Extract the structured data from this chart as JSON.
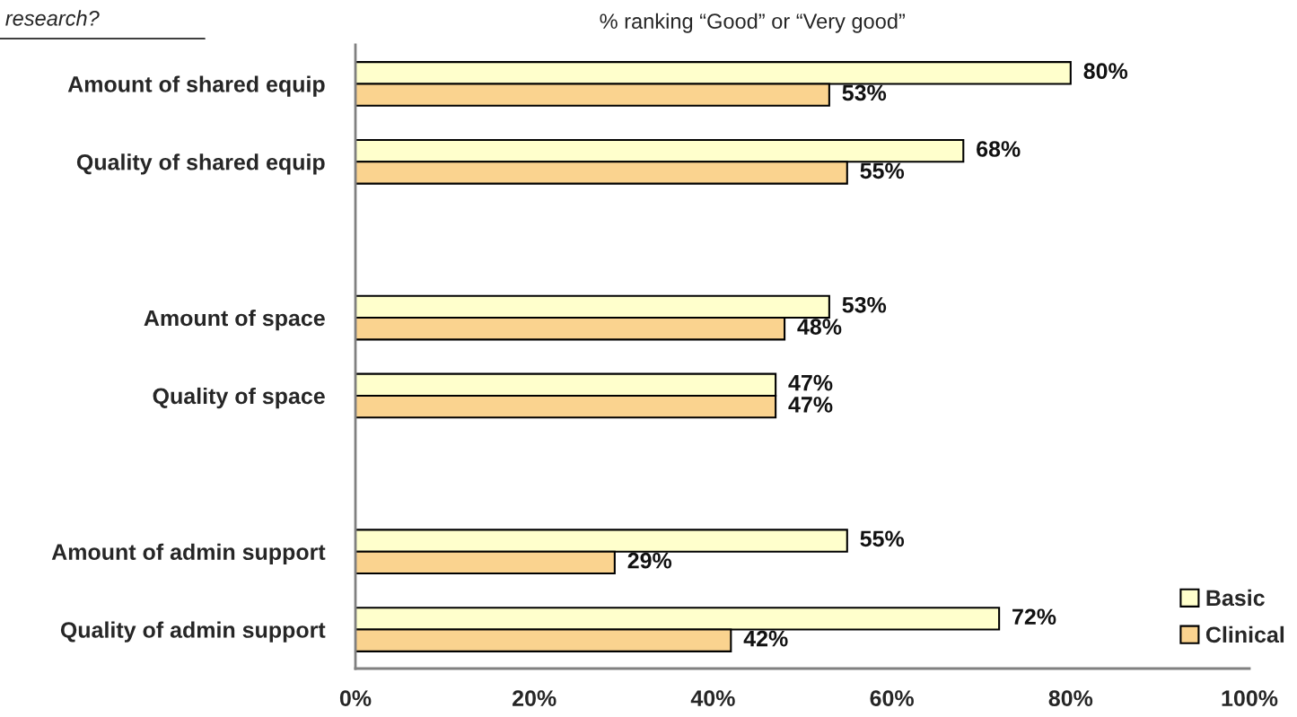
{
  "chart_data": {
    "type": "bar",
    "orientation": "horizontal",
    "title": "% ranking “Good” or “Very good”",
    "annotations": [
      "research?"
    ],
    "categories": [
      "Amount of shared equip",
      "Quality of shared equip",
      null,
      "Amount of space",
      "Quality of space",
      null,
      "Amount of admin support",
      "Quality of admin support"
    ],
    "series": [
      {
        "name": "Basic",
        "color": "#ffffcc",
        "values": [
          80,
          68,
          null,
          53,
          47,
          null,
          55,
          72
        ],
        "value_labels": [
          "80%",
          "68%",
          null,
          "53%",
          "47%",
          null,
          "55%",
          "72%"
        ]
      },
      {
        "name": "Clinical",
        "color": "#fad38f",
        "values": [
          53,
          55,
          null,
          48,
          47,
          null,
          29,
          42
        ],
        "value_labels": [
          "53%",
          "55%",
          null,
          "48%",
          "47%",
          null,
          "29%",
          "42%"
        ]
      }
    ],
    "xlim": [
      0,
      100
    ],
    "xticks": [
      {
        "value": 0,
        "label": "0%"
      },
      {
        "value": 20,
        "label": "20%"
      },
      {
        "value": 40,
        "label": "40%"
      },
      {
        "value": 60,
        "label": "60%"
      },
      {
        "value": 80,
        "label": "80%"
      },
      {
        "value": 100,
        "label": "100%"
      }
    ],
    "legend": "bottom right",
    "grid": false
  }
}
